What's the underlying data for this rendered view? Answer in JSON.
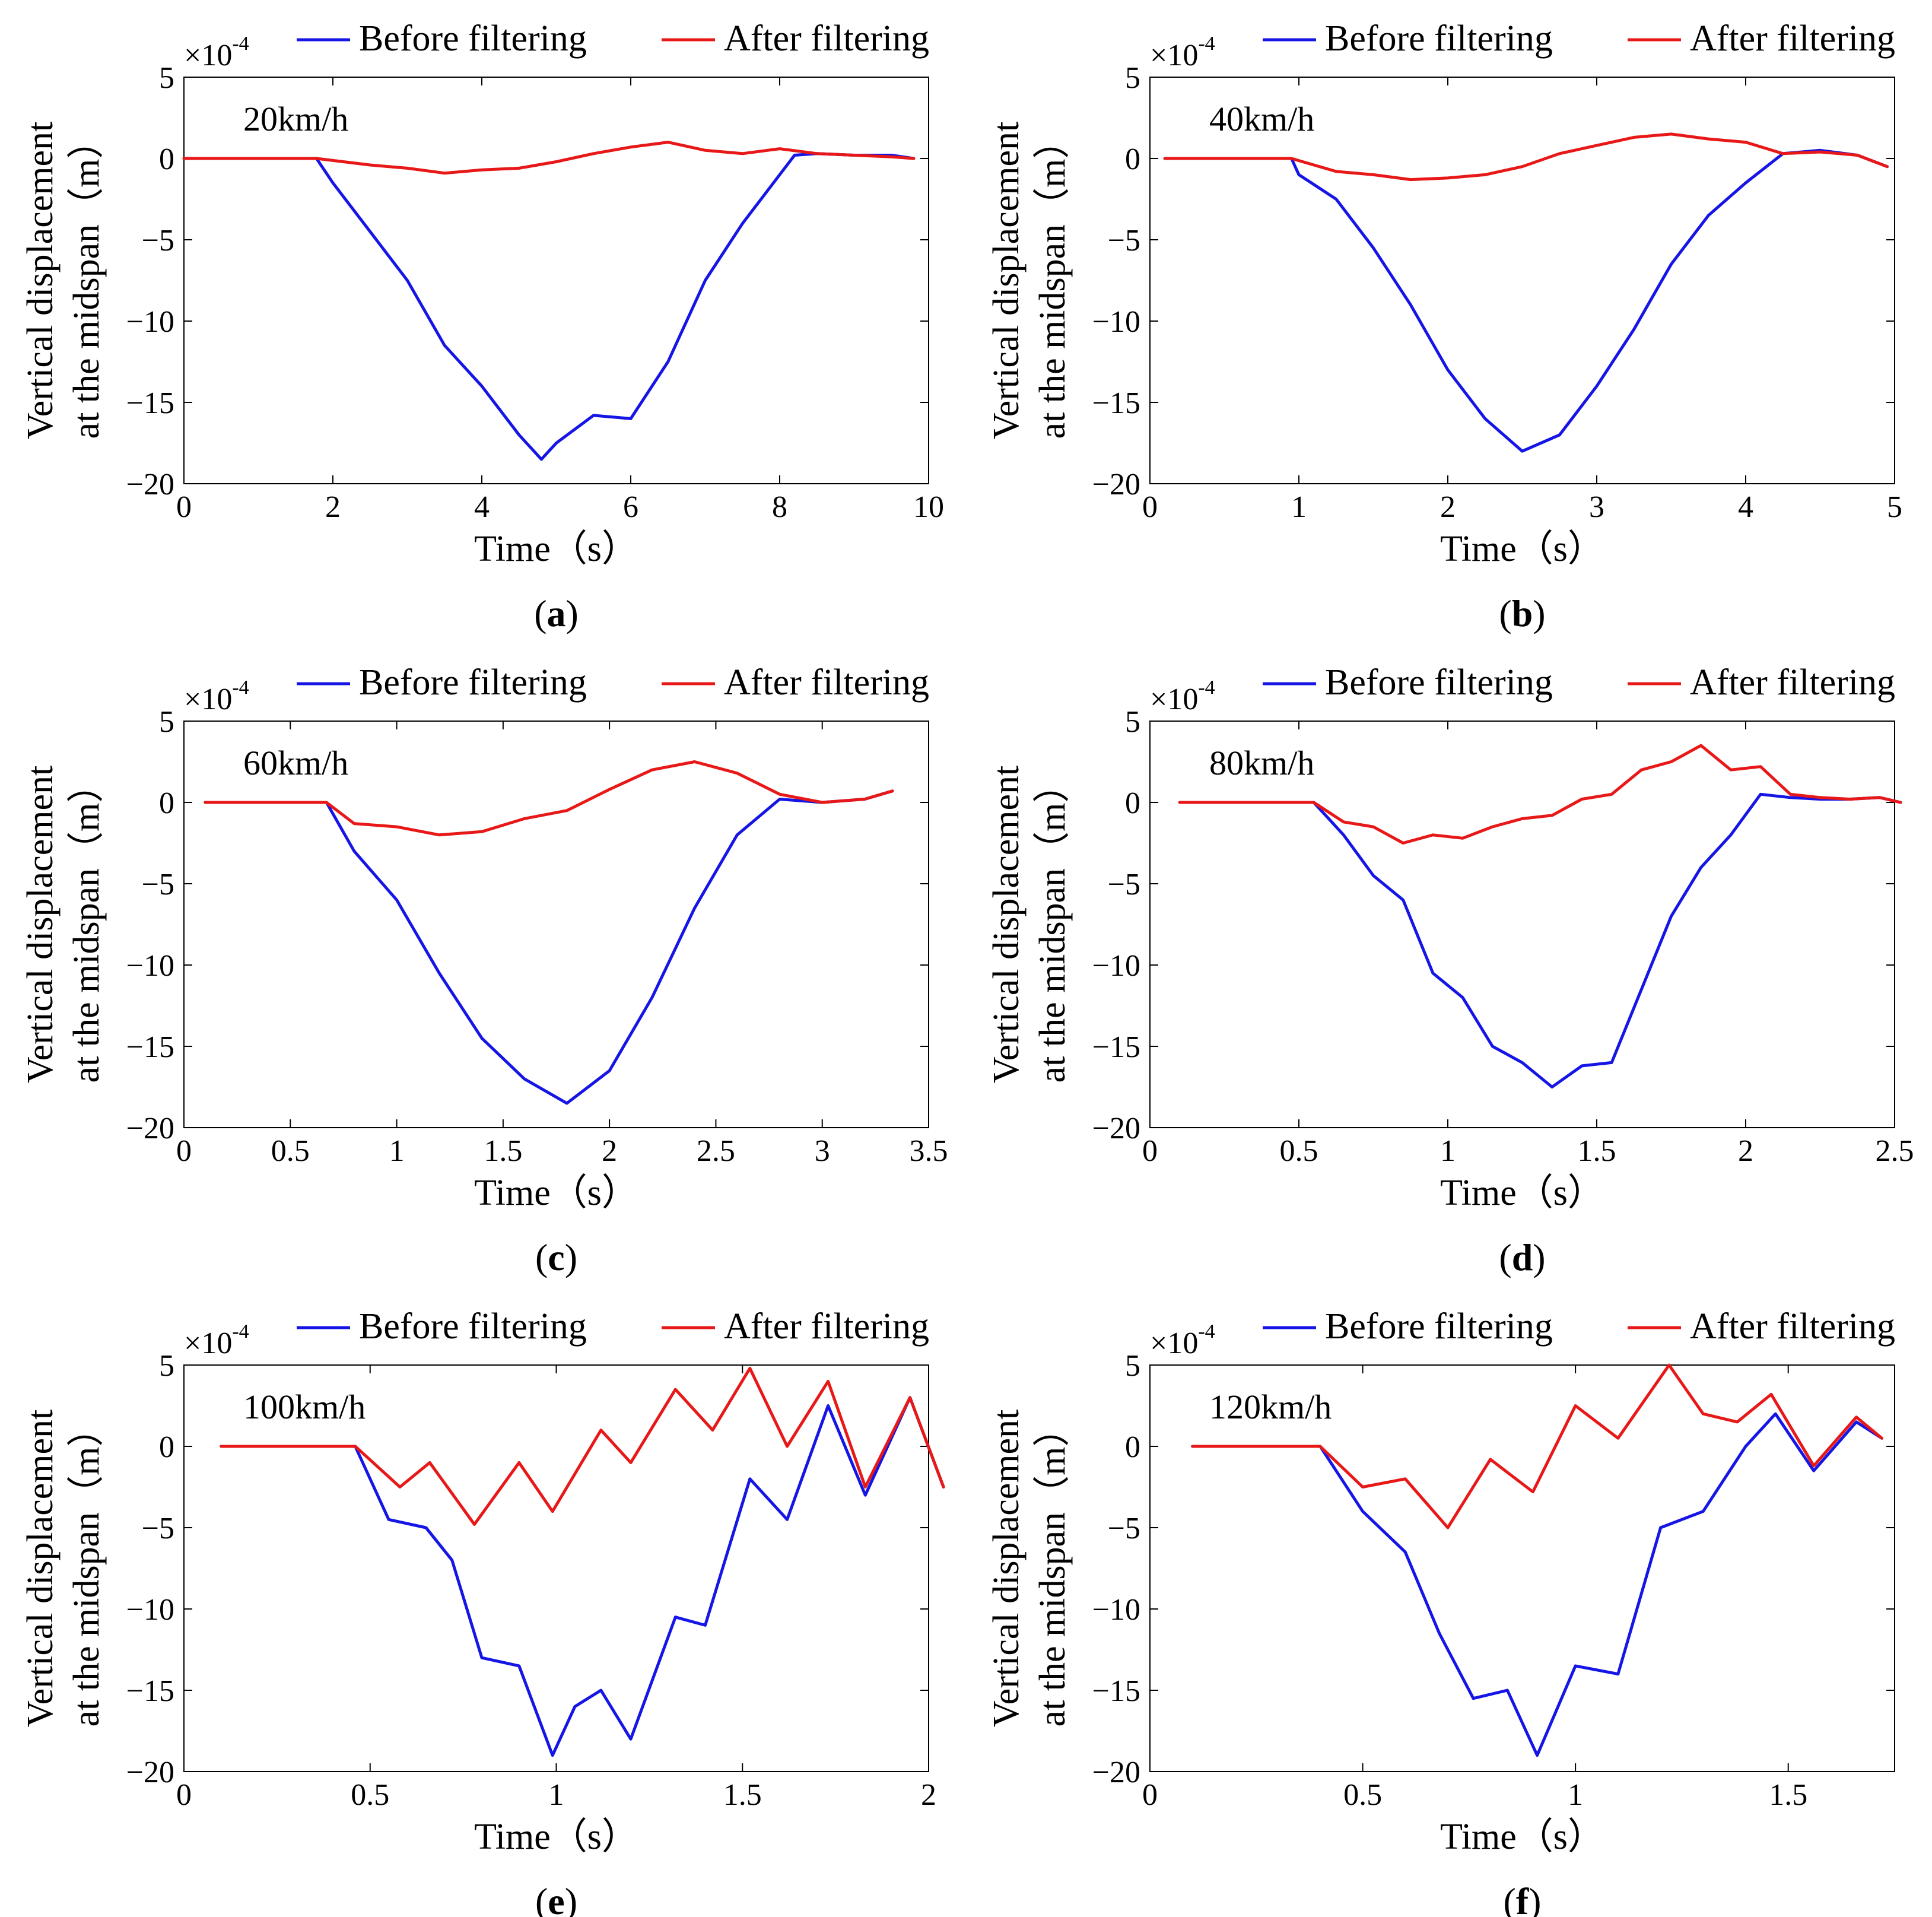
{
  "figure": {
    "xlabel": "Time（s）",
    "ylabel_line1": "Vertical displacement",
    "ylabel_line2": "at the midspan（m）",
    "exponent_base": "×10",
    "exponent_power": "-4",
    "colors": {
      "before": "#1515e6",
      "after": "#e81818"
    }
  },
  "chart_data": [
    {
      "type": "line",
      "id": "a",
      "caption": "(a)",
      "caption_letter": "a",
      "speed_label": "20km/h",
      "legend": [
        "Before filtering",
        "After filtering"
      ],
      "xlim": [
        0,
        10
      ],
      "ylim": [
        -20,
        5
      ],
      "xticks": [
        0,
        2,
        4,
        6,
        8,
        10
      ],
      "xtick_labels": [
        "0",
        "2",
        "4",
        "6",
        "8",
        "10"
      ],
      "yticks": [
        5,
        0,
        -5,
        -10,
        -15,
        -20
      ],
      "ytick_labels": [
        "5",
        "0",
        "−5",
        "−10",
        "−15",
        "−20"
      ],
      "series": [
        {
          "name": "Before filtering",
          "x": [
            0,
            1.78,
            2.0,
            2.5,
            3.0,
            3.5,
            4.0,
            4.5,
            4.8,
            5.0,
            5.5,
            6.0,
            6.5,
            7.0,
            7.5,
            8.0,
            8.2,
            8.5,
            9.0,
            9.5,
            9.8
          ],
          "y": [
            0,
            0,
            -1.5,
            -4.5,
            -7.5,
            -11.5,
            -14.0,
            -17.0,
            -18.5,
            -17.5,
            -15.8,
            -16.0,
            -12.5,
            -7.5,
            -4.0,
            -1.0,
            0.2,
            0.3,
            0.2,
            0.2,
            0
          ]
        },
        {
          "name": "After filtering",
          "x": [
            0,
            1.78,
            2.5,
            3.0,
            3.5,
            4.0,
            4.5,
            5.0,
            5.5,
            6.0,
            6.5,
            7.0,
            7.5,
            8.0,
            8.5,
            9.0,
            9.5,
            9.8
          ],
          "y": [
            0,
            0,
            -0.4,
            -0.6,
            -0.9,
            -0.7,
            -0.6,
            -0.2,
            0.3,
            0.7,
            1.0,
            0.5,
            0.3,
            0.6,
            0.3,
            0.2,
            0.1,
            0
          ]
        }
      ]
    },
    {
      "type": "line",
      "id": "b",
      "caption": "(b)",
      "caption_letter": "b",
      "speed_label": "40km/h",
      "legend": [
        "Before filtering",
        "After filtering"
      ],
      "xlim": [
        0,
        5
      ],
      "ylim": [
        -20,
        5
      ],
      "xticks": [
        0,
        1,
        2,
        3,
        4,
        5
      ],
      "xtick_labels": [
        "0",
        "1",
        "2",
        "3",
        "4",
        "5"
      ],
      "yticks": [
        5,
        0,
        -5,
        -10,
        -15,
        -20
      ],
      "ytick_labels": [
        "5",
        "0",
        "−5",
        "−10",
        "−15",
        "−20"
      ],
      "series": [
        {
          "name": "Before filtering",
          "x": [
            0.1,
            0.95,
            1.0,
            1.25,
            1.5,
            1.75,
            2.0,
            2.25,
            2.5,
            2.75,
            3.0,
            3.25,
            3.5,
            3.75,
            4.0,
            4.25,
            4.5,
            4.75,
            4.95
          ],
          "y": [
            0,
            0,
            -1.0,
            -2.5,
            -5.5,
            -9.0,
            -13.0,
            -16.0,
            -18.0,
            -17.0,
            -14.0,
            -10.5,
            -6.5,
            -3.5,
            -1.5,
            0.3,
            0.5,
            0.2,
            -0.5
          ]
        },
        {
          "name": "After filtering",
          "x": [
            0.1,
            0.95,
            1.25,
            1.5,
            1.75,
            2.0,
            2.25,
            2.5,
            2.75,
            3.0,
            3.25,
            3.5,
            3.75,
            4.0,
            4.25,
            4.5,
            4.75,
            4.95
          ],
          "y": [
            0,
            0,
            -0.8,
            -1.0,
            -1.3,
            -1.2,
            -1.0,
            -0.5,
            0.3,
            0.8,
            1.3,
            1.5,
            1.2,
            1.0,
            0.3,
            0.4,
            0.2,
            -0.5
          ]
        }
      ]
    },
    {
      "type": "line",
      "id": "c",
      "caption": "(c)",
      "caption_letter": "c",
      "speed_label": "60km/h",
      "legend": [
        "Before filtering",
        "After filtering"
      ],
      "xlim": [
        0,
        3.5
      ],
      "ylim": [
        -20,
        5
      ],
      "xticks": [
        0,
        0.5,
        1,
        1.5,
        2,
        2.5,
        3,
        3.5
      ],
      "xtick_labels": [
        "0",
        "0.5",
        "1",
        "1.5",
        "2",
        "2.5",
        "3",
        "3.5"
      ],
      "yticks": [
        5,
        0,
        -5,
        -10,
        -15,
        -20
      ],
      "ytick_labels": [
        "5",
        "0",
        "−5",
        "−10",
        "−15",
        "−20"
      ],
      "series": [
        {
          "name": "Before filtering",
          "x": [
            0.1,
            0.67,
            0.8,
            1.0,
            1.2,
            1.4,
            1.6,
            1.8,
            2.0,
            2.2,
            2.4,
            2.6,
            2.8,
            3.0,
            3.2,
            3.33
          ],
          "y": [
            0,
            0,
            -3.0,
            -6.0,
            -10.5,
            -14.5,
            -17.0,
            -18.5,
            -16.5,
            -12.0,
            -6.5,
            -2.0,
            0.2,
            0,
            0.2,
            0.7
          ]
        },
        {
          "name": "After filtering",
          "x": [
            0.1,
            0.67,
            0.8,
            1.0,
            1.2,
            1.4,
            1.6,
            1.8,
            2.0,
            2.2,
            2.4,
            2.6,
            2.8,
            3.0,
            3.2,
            3.33
          ],
          "y": [
            0,
            0,
            -1.3,
            -1.5,
            -2.0,
            -1.8,
            -1.0,
            -0.5,
            0.8,
            2.0,
            2.5,
            1.8,
            0.5,
            0,
            0.2,
            0.7
          ]
        }
      ]
    },
    {
      "type": "line",
      "id": "d",
      "caption": "(d)",
      "caption_letter": "d",
      "speed_label": "80km/h",
      "legend": [
        "Before filtering",
        "After filtering"
      ],
      "xlim": [
        0,
        2.5
      ],
      "ylim": [
        -20,
        5
      ],
      "xticks": [
        0,
        0.5,
        1,
        1.5,
        2,
        2.5
      ],
      "xtick_labels": [
        "0",
        "0.5",
        "1",
        "1.5",
        "2",
        "2.5"
      ],
      "yticks": [
        5,
        0,
        -5,
        -10,
        -15,
        -20
      ],
      "ytick_labels": [
        "5",
        "0",
        "−5",
        "−10",
        "−15",
        "−20"
      ],
      "series": [
        {
          "name": "Before filtering",
          "x": [
            0.1,
            0.55,
            0.65,
            0.75,
            0.85,
            0.95,
            1.05,
            1.15,
            1.25,
            1.35,
            1.45,
            1.55,
            1.65,
            1.75,
            1.85,
            1.95,
            2.05,
            2.15,
            2.25,
            2.35,
            2.45,
            2.52
          ],
          "y": [
            0,
            0,
            -2.0,
            -4.5,
            -6.0,
            -10.5,
            -12.0,
            -15.0,
            -16.0,
            -17.5,
            -16.2,
            -16.0,
            -11.5,
            -7.0,
            -4.0,
            -2.0,
            0.5,
            0.3,
            0.2,
            0.2,
            0.3,
            0
          ]
        },
        {
          "name": "After filtering",
          "x": [
            0.1,
            0.55,
            0.65,
            0.75,
            0.85,
            0.95,
            1.05,
            1.15,
            1.25,
            1.35,
            1.45,
            1.55,
            1.65,
            1.75,
            1.85,
            1.95,
            2.05,
            2.15,
            2.25,
            2.35,
            2.45,
            2.52
          ],
          "y": [
            0,
            0,
            -1.2,
            -1.5,
            -2.5,
            -2.0,
            -2.2,
            -1.5,
            -1.0,
            -0.8,
            0.2,
            0.5,
            2.0,
            2.5,
            3.5,
            2.0,
            2.2,
            0.5,
            0.3,
            0.2,
            0.3,
            0
          ]
        }
      ]
    },
    {
      "type": "line",
      "id": "e",
      "caption": "(e)",
      "caption_letter": "e",
      "speed_label": "100km/h",
      "legend": [
        "Before filtering",
        "After filtering"
      ],
      "xlim": [
        0,
        2
      ],
      "ylim": [
        -20,
        5
      ],
      "xticks": [
        0,
        0.5,
        1,
        1.5,
        2
      ],
      "xtick_labels": [
        "0",
        "0.5",
        "1",
        "1.5",
        "2"
      ],
      "yticks": [
        5,
        0,
        -5,
        -10,
        -15,
        -20
      ],
      "ytick_labels": [
        "5",
        "0",
        "−5",
        "−10",
        "−15",
        "−20"
      ],
      "series": [
        {
          "name": "Before filtering",
          "x": [
            0.1,
            0.46,
            0.55,
            0.65,
            0.72,
            0.8,
            0.9,
            0.99,
            1.05,
            1.12,
            1.2,
            1.32,
            1.4,
            1.52,
            1.62,
            1.73,
            1.83,
            1.95,
            2.04
          ],
          "y": [
            0,
            0,
            -4.5,
            -5.0,
            -7.0,
            -13.0,
            -13.5,
            -19.0,
            -16.0,
            -15.0,
            -18.0,
            -10.5,
            -11.0,
            -2.0,
            -4.5,
            2.5,
            -3.0,
            3.0,
            -2.5
          ]
        },
        {
          "name": "After filtering",
          "x": [
            0.1,
            0.46,
            0.58,
            0.66,
            0.78,
            0.9,
            0.99,
            1.12,
            1.2,
            1.32,
            1.42,
            1.52,
            1.62,
            1.73,
            1.83,
            1.95,
            2.04
          ],
          "y": [
            0,
            0,
            -2.5,
            -1.0,
            -4.8,
            -1.0,
            -4.0,
            1.0,
            -1.0,
            3.5,
            1.0,
            4.8,
            0,
            4.0,
            -2.5,
            3.0,
            -2.5
          ]
        }
      ]
    },
    {
      "type": "line",
      "id": "f",
      "caption": "(f)",
      "caption_letter": "f",
      "speed_label": "120km/h",
      "legend": [
        "Before filtering",
        "After filtering"
      ],
      "xlim": [
        0,
        1.75
      ],
      "ylim": [
        -20,
        5
      ],
      "xticks": [
        0,
        0.5,
        1,
        1.5
      ],
      "xtick_labels": [
        "0",
        "0.5",
        "1",
        "1.5"
      ],
      "yticks": [
        5,
        0,
        -5,
        -10,
        -15,
        -20
      ],
      "ytick_labels": [
        "5",
        "0",
        "−5",
        "−10",
        "−15",
        "−20"
      ],
      "series": [
        {
          "name": "Before filtering",
          "x": [
            0.1,
            0.4,
            0.5,
            0.6,
            0.68,
            0.76,
            0.84,
            0.91,
            1.0,
            1.1,
            1.2,
            1.3,
            1.4,
            1.47,
            1.56,
            1.66,
            1.72
          ],
          "y": [
            0,
            0,
            -4.0,
            -6.5,
            -11.5,
            -15.5,
            -15.0,
            -19.0,
            -13.5,
            -14.0,
            -5.0,
            -4.0,
            0,
            2.0,
            -1.5,
            1.5,
            0.5
          ]
        },
        {
          "name": "After filtering",
          "x": [
            0.1,
            0.4,
            0.5,
            0.6,
            0.7,
            0.8,
            0.9,
            1.0,
            1.1,
            1.22,
            1.3,
            1.38,
            1.46,
            1.56,
            1.66,
            1.72
          ],
          "y": [
            0,
            0,
            -2.5,
            -2.0,
            -5.0,
            -0.8,
            -2.8,
            2.5,
            0.5,
            5.0,
            2.0,
            1.5,
            3.2,
            -1.2,
            1.8,
            0.5
          ]
        }
      ]
    }
  ]
}
